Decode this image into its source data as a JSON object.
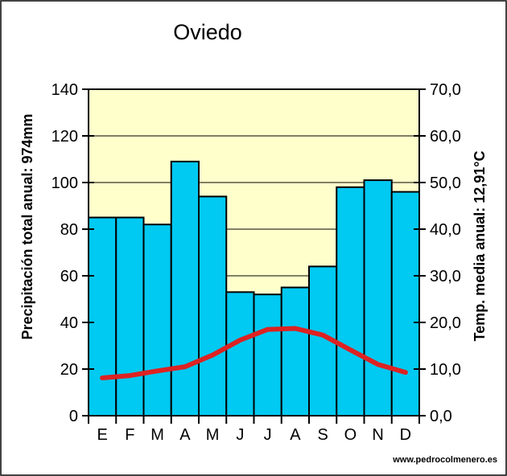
{
  "title": "Oviedo",
  "watermark": "www.pedrocolmenero.es",
  "colors": {
    "bar_fill": "#00c9f2",
    "bar_stroke": "#000000",
    "line_color": "#dd2222",
    "plot_background": "#ffffcc",
    "grid_color": "#000000",
    "frame_color": "#000000",
    "page_background": "#ffffff"
  },
  "chart_data": {
    "type": "bar+line",
    "title": "Oviedo",
    "categories": [
      "E",
      "F",
      "M",
      "A",
      "M",
      "J",
      "J",
      "A",
      "S",
      "O",
      "N",
      "D"
    ],
    "series": [
      {
        "name": "precipitation_mm",
        "type": "bar",
        "axis": "left",
        "color": "#00c9f2",
        "values": [
          85,
          85,
          82,
          109,
          94,
          53,
          52,
          55,
          64,
          98,
          101,
          96
        ]
      },
      {
        "name": "temperature_c",
        "type": "line",
        "axis": "right",
        "color": "#dd2222",
        "values": [
          8.1,
          8.6,
          9.6,
          10.5,
          13.0,
          16.2,
          18.5,
          18.7,
          17.3,
          14.1,
          11.0,
          9.3
        ]
      }
    ],
    "left_axis": {
      "label": "Precipitación total anual: 974mm",
      "range": [
        0,
        140
      ],
      "tick_step": 20,
      "tick_values": [
        0,
        20,
        40,
        60,
        80,
        100,
        120,
        140
      ],
      "tick_labels": [
        "0",
        "20",
        "40",
        "60",
        "80",
        "100",
        "120",
        "140"
      ]
    },
    "right_axis": {
      "label": "Temp. media anual: 12,91°C",
      "range": [
        0,
        70
      ],
      "tick_step": 10,
      "tick_values": [
        0,
        10,
        20,
        30,
        40,
        50,
        60,
        70
      ],
      "tick_labels": [
        "0,0",
        "10,0",
        "20,0",
        "30,0",
        "40,0",
        "50,0",
        "60,0",
        "70,0"
      ]
    },
    "grid": true,
    "legend": "none"
  }
}
